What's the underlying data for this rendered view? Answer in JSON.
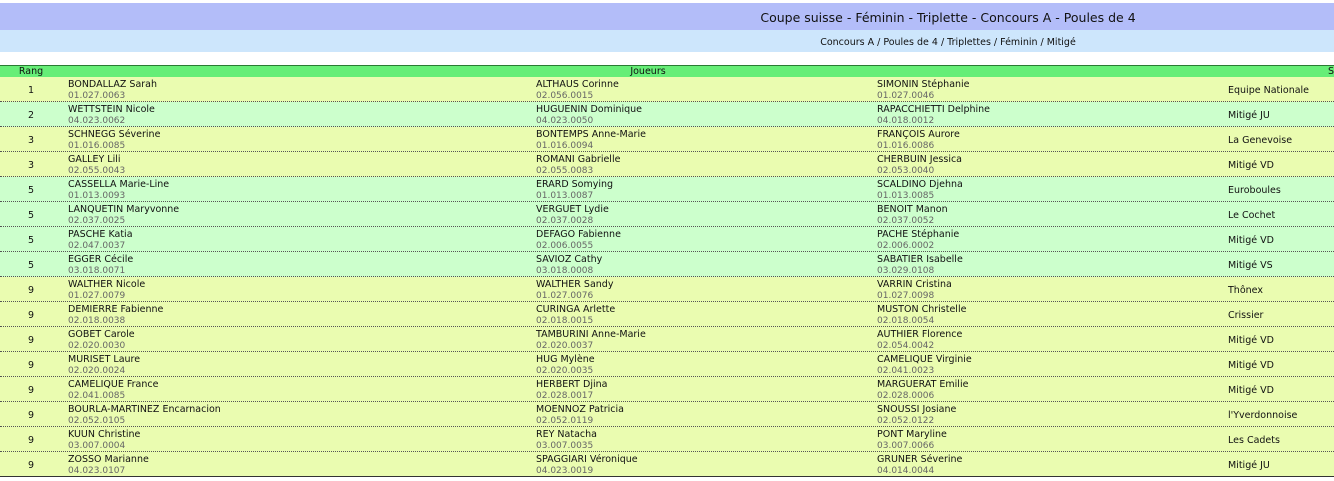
{
  "header": {
    "title": "Coupe suisse - Féminin - Triplette - Concours A - Poules de 4",
    "breadcrumb": "Concours A / Poules de 4 / Triplettes / Féminin / Mitigé"
  },
  "table": {
    "columns": [
      "Rang",
      "Joueurs",
      "S"
    ],
    "rows": [
      {
        "rank": "1",
        "players": [
          [
            "BONDALLAZ Sarah",
            "01.027.0063"
          ],
          [
            "ALTHAUS Corinne",
            "02.056.0015"
          ],
          [
            "SIMONIN Stéphanie",
            "01.027.0046"
          ]
        ],
        "club": "Equipe Nationale"
      },
      {
        "rank": "2",
        "players": [
          [
            "WETTSTEIN Nicole",
            "04.023.0062"
          ],
          [
            "HUGUENIN Dominique",
            "04.023.0050"
          ],
          [
            "RAPACCHIETTI Delphine",
            "04.018.0012"
          ]
        ],
        "club": "Mitigé JU"
      },
      {
        "rank": "3",
        "players": [
          [
            "SCHNEGG Séverine",
            "01.016.0085"
          ],
          [
            "BONTEMPS Anne-Marie",
            "01.016.0094"
          ],
          [
            "FRANÇOIS Aurore",
            "01.016.0086"
          ]
        ],
        "club": "La Genevoise"
      },
      {
        "rank": "3",
        "players": [
          [
            "GALLEY Lili",
            "02.055.0043"
          ],
          [
            "ROMANI Gabrielle",
            "02.055.0083"
          ],
          [
            "CHERBUIN Jessica",
            "02.053.0040"
          ]
        ],
        "club": "Mitigé VD"
      },
      {
        "rank": "5",
        "players": [
          [
            "CASSELLA Marie-Line",
            "01.013.0093"
          ],
          [
            "ERARD Somying",
            "01.013.0087"
          ],
          [
            "SCALDINO Djehna",
            "01.013.0085"
          ]
        ],
        "club": "Euroboules"
      },
      {
        "rank": "5",
        "players": [
          [
            "LANQUETIN Maryvonne",
            "02.037.0025"
          ],
          [
            "VERGUET Lydie",
            "02.037.0028"
          ],
          [
            "BENOIT Manon",
            "02.037.0052"
          ]
        ],
        "club": "Le Cochet"
      },
      {
        "rank": "5",
        "players": [
          [
            "PASCHE Katia",
            "02.047.0037"
          ],
          [
            "DEFAGO Fabienne",
            "02.006.0055"
          ],
          [
            "PACHE Stéphanie",
            "02.006.0002"
          ]
        ],
        "club": "Mitigé VD"
      },
      {
        "rank": "5",
        "players": [
          [
            "EGGER Cécile",
            "03.018.0071"
          ],
          [
            "SAVIOZ Cathy",
            "03.018.0008"
          ],
          [
            "SABATIER Isabelle",
            "03.029.0108"
          ]
        ],
        "club": "Mitigé VS"
      },
      {
        "rank": "9",
        "players": [
          [
            "WALTHER Nicole",
            "01.027.0079"
          ],
          [
            "WALTHER Sandy",
            "01.027.0076"
          ],
          [
            "VARRIN Cristina",
            "01.027.0098"
          ]
        ],
        "club": "Thônex"
      },
      {
        "rank": "9",
        "players": [
          [
            "DEMIERRE Fabienne",
            "02.018.0038"
          ],
          [
            "CURINGA Arlette",
            "02.018.0015"
          ],
          [
            "MUSTON Christelle",
            "02.018.0054"
          ]
        ],
        "club": "Crissier"
      },
      {
        "rank": "9",
        "players": [
          [
            "GOBET Carole",
            "02.020.0030"
          ],
          [
            "TAMBURINI Anne-Marie",
            "02.020.0037"
          ],
          [
            "AUTHIER Florence",
            "02.054.0042"
          ]
        ],
        "club": "Mitigé VD"
      },
      {
        "rank": "9",
        "players": [
          [
            "MURISET Laure",
            "02.020.0024"
          ],
          [
            "HUG Mylène",
            "02.020.0035"
          ],
          [
            "CAMELIQUE Virginie",
            "02.041.0023"
          ]
        ],
        "club": "Mitigé VD"
      },
      {
        "rank": "9",
        "players": [
          [
            "CAMELIQUE France",
            "02.041.0085"
          ],
          [
            "HERBERT Djina",
            "02.028.0017"
          ],
          [
            "MARGUERAT Emilie",
            "02.028.0006"
          ]
        ],
        "club": "Mitigé VD"
      },
      {
        "rank": "9",
        "players": [
          [
            "BOURLA-MARTINEZ Encarnacion",
            "02.052.0105"
          ],
          [
            "MOENNOZ Patricia",
            "02.052.0119"
          ],
          [
            "SNOUSSI Josiane",
            "02.052.0122"
          ]
        ],
        "club": "l'Yverdonnoise"
      },
      {
        "rank": "9",
        "players": [
          [
            "KUUN Christine",
            "03.007.0004"
          ],
          [
            "REY Natacha",
            "03.007.0035"
          ],
          [
            "PONT Maryline",
            "03.007.0066"
          ]
        ],
        "club": "Les Cadets"
      },
      {
        "rank": "9",
        "players": [
          [
            "ZOSSO Marianne",
            "04.023.0107"
          ],
          [
            "SPAGGIARI Véronique",
            "04.023.0019"
          ],
          [
            "GRUNER Séverine",
            "04.014.0044"
          ]
        ],
        "club": "Mitigé JU"
      }
    ]
  }
}
